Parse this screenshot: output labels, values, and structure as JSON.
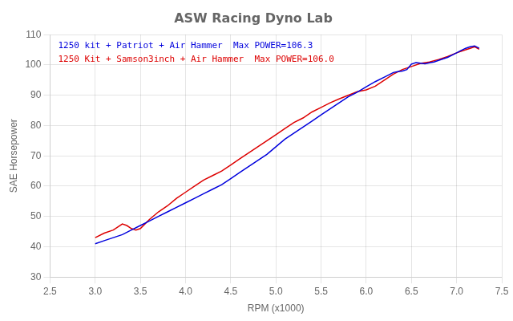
{
  "chart_data": {
    "type": "line",
    "title": "ASW Racing Dyno Lab",
    "x_label": "RPM (x1000)",
    "y_label": "SAE Horsepower",
    "xlim": [
      2.5,
      7.5
    ],
    "ylim": [
      30,
      110
    ],
    "xticks": [
      2.5,
      {
        "value": 3,
        "label": "3.0"
      },
      3.5,
      {
        "value": 4,
        "label": "4.0"
      },
      4.5,
      {
        "value": 5,
        "label": "5.0"
      },
      5.5,
      {
        "value": 6,
        "label": "6.0"
      },
      6.5,
      {
        "value": 7,
        "label": "7.0"
      },
      7.5
    ],
    "yticks": [
      30,
      40,
      50,
      60,
      70,
      80,
      90,
      100,
      110
    ],
    "grid": true,
    "legend": "upper left",
    "series": [
      {
        "name": "1250 kit + Patriot + Air Hammer  Max POWER=106.3",
        "color": "#0000dd",
        "x": [
          3.0,
          3.1,
          3.2,
          3.3,
          3.4,
          3.5,
          3.6,
          3.7,
          3.8,
          3.9,
          4.0,
          4.1,
          4.2,
          4.3,
          4.4,
          4.5,
          4.6,
          4.7,
          4.8,
          4.9,
          5.0,
          5.1,
          5.2,
          5.3,
          5.4,
          5.5,
          5.6,
          5.7,
          5.8,
          5.9,
          6.0,
          6.1,
          6.2,
          6.3,
          6.35,
          6.4,
          6.45,
          6.5,
          6.55,
          6.6,
          6.65,
          6.7,
          6.75,
          6.8,
          6.9,
          7.0,
          7.05,
          7.1,
          7.15,
          7.2,
          7.25
        ],
        "values": [
          41.0,
          42.0,
          43.0,
          44.0,
          45.5,
          47.0,
          48.5,
          50.0,
          51.5,
          53.0,
          54.5,
          56.0,
          57.5,
          59.0,
          60.5,
          62.5,
          64.5,
          66.5,
          68.5,
          70.5,
          73.0,
          75.5,
          77.5,
          79.5,
          81.5,
          83.5,
          85.5,
          87.5,
          89.5,
          91.0,
          92.8,
          94.5,
          96.0,
          97.5,
          97.8,
          98.0,
          98.5,
          100.3,
          100.8,
          100.6,
          100.4,
          100.7,
          101.0,
          101.5,
          102.5,
          104.0,
          104.8,
          105.5,
          106.0,
          106.3,
          105.5
        ]
      },
      {
        "name": "1250 Kit + Samson3inch + Air Hammer  Max POWER=106.0",
        "color": "#dd0000",
        "x": [
          3.0,
          3.1,
          3.2,
          3.25,
          3.3,
          3.35,
          3.4,
          3.45,
          3.5,
          3.55,
          3.6,
          3.7,
          3.8,
          3.9,
          4.0,
          4.1,
          4.2,
          4.3,
          4.4,
          4.5,
          4.6,
          4.7,
          4.8,
          4.9,
          5.0,
          5.1,
          5.2,
          5.3,
          5.4,
          5.5,
          5.6,
          5.7,
          5.8,
          5.9,
          6.0,
          6.1,
          6.2,
          6.3,
          6.4,
          6.5,
          6.6,
          6.7,
          6.8,
          6.9,
          7.0,
          7.1,
          7.15,
          7.2,
          7.25
        ],
        "values": [
          43.0,
          44.5,
          45.5,
          46.5,
          47.5,
          47.0,
          46.0,
          45.5,
          46.0,
          47.5,
          49.0,
          51.5,
          53.5,
          56.0,
          58.0,
          60.0,
          62.0,
          63.5,
          65.0,
          67.0,
          69.0,
          71.0,
          73.0,
          75.0,
          77.0,
          79.0,
          81.0,
          82.5,
          84.5,
          86.0,
          87.5,
          88.8,
          90.0,
          91.2,
          91.8,
          93.0,
          95.0,
          97.0,
          98.5,
          99.5,
          100.5,
          101.0,
          101.8,
          102.8,
          104.0,
          105.0,
          105.5,
          106.0,
          105.2
        ]
      }
    ]
  }
}
